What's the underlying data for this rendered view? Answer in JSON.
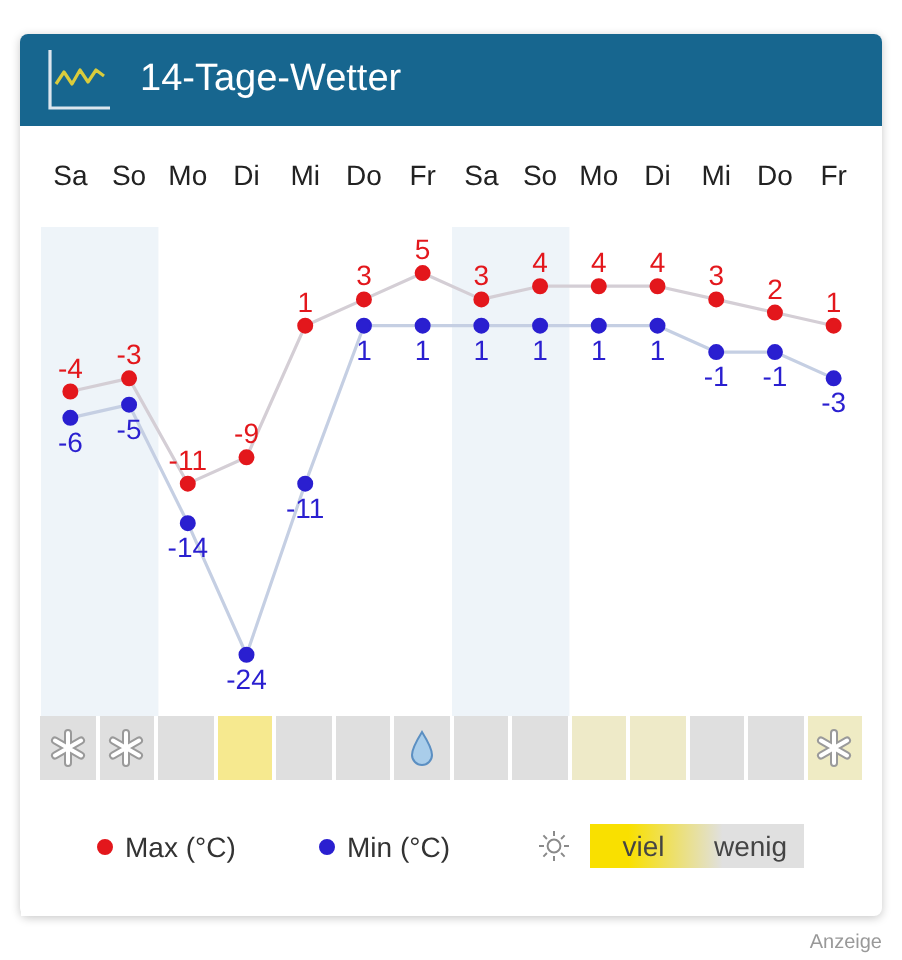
{
  "chart_data": [
    {
      "type": "line",
      "title": "14-Tage-Wetter",
      "categories": [
        "Sa",
        "So",
        "Mo",
        "Di",
        "Mi",
        "Do",
        "Fr",
        "Sa",
        "So",
        "Mo",
        "Di",
        "Mi",
        "Do",
        "Fr"
      ],
      "series": [
        {
          "name": "Max (°C)",
          "color": "#e3171c",
          "values": [
            -4,
            -3,
            -11,
            -9,
            1,
            3,
            5,
            3,
            4,
            4,
            4,
            3,
            2,
            1
          ]
        },
        {
          "name": "Min (°C)",
          "color": "#2a1fd0",
          "values": [
            -6,
            -5,
            -14,
            -24,
            -11,
            1,
            1,
            1,
            1,
            1,
            1,
            -1,
            -1,
            -3
          ]
        }
      ],
      "data_labels": true,
      "marker": "circle",
      "legend": "bottom",
      "tick_labels": "x",
      "annotations": [
        "Anzeige"
      ]
    },
    {
      "type": "other",
      "annotations": [
        "viel",
        "wenig"
      ]
    }
  ]
}
